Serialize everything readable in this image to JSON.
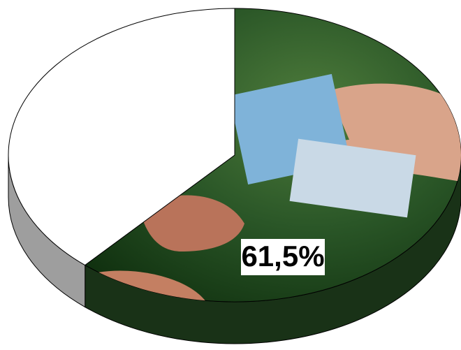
{
  "chart_data": {
    "type": "pie",
    "values": [
      61.5,
      38.5
    ],
    "value_labels": [
      "61,5%",
      null
    ],
    "colors": [
      "#2d5a2a",
      "#ffffff"
    ],
    "start_angle": -90,
    "direction": "clockwise"
  }
}
